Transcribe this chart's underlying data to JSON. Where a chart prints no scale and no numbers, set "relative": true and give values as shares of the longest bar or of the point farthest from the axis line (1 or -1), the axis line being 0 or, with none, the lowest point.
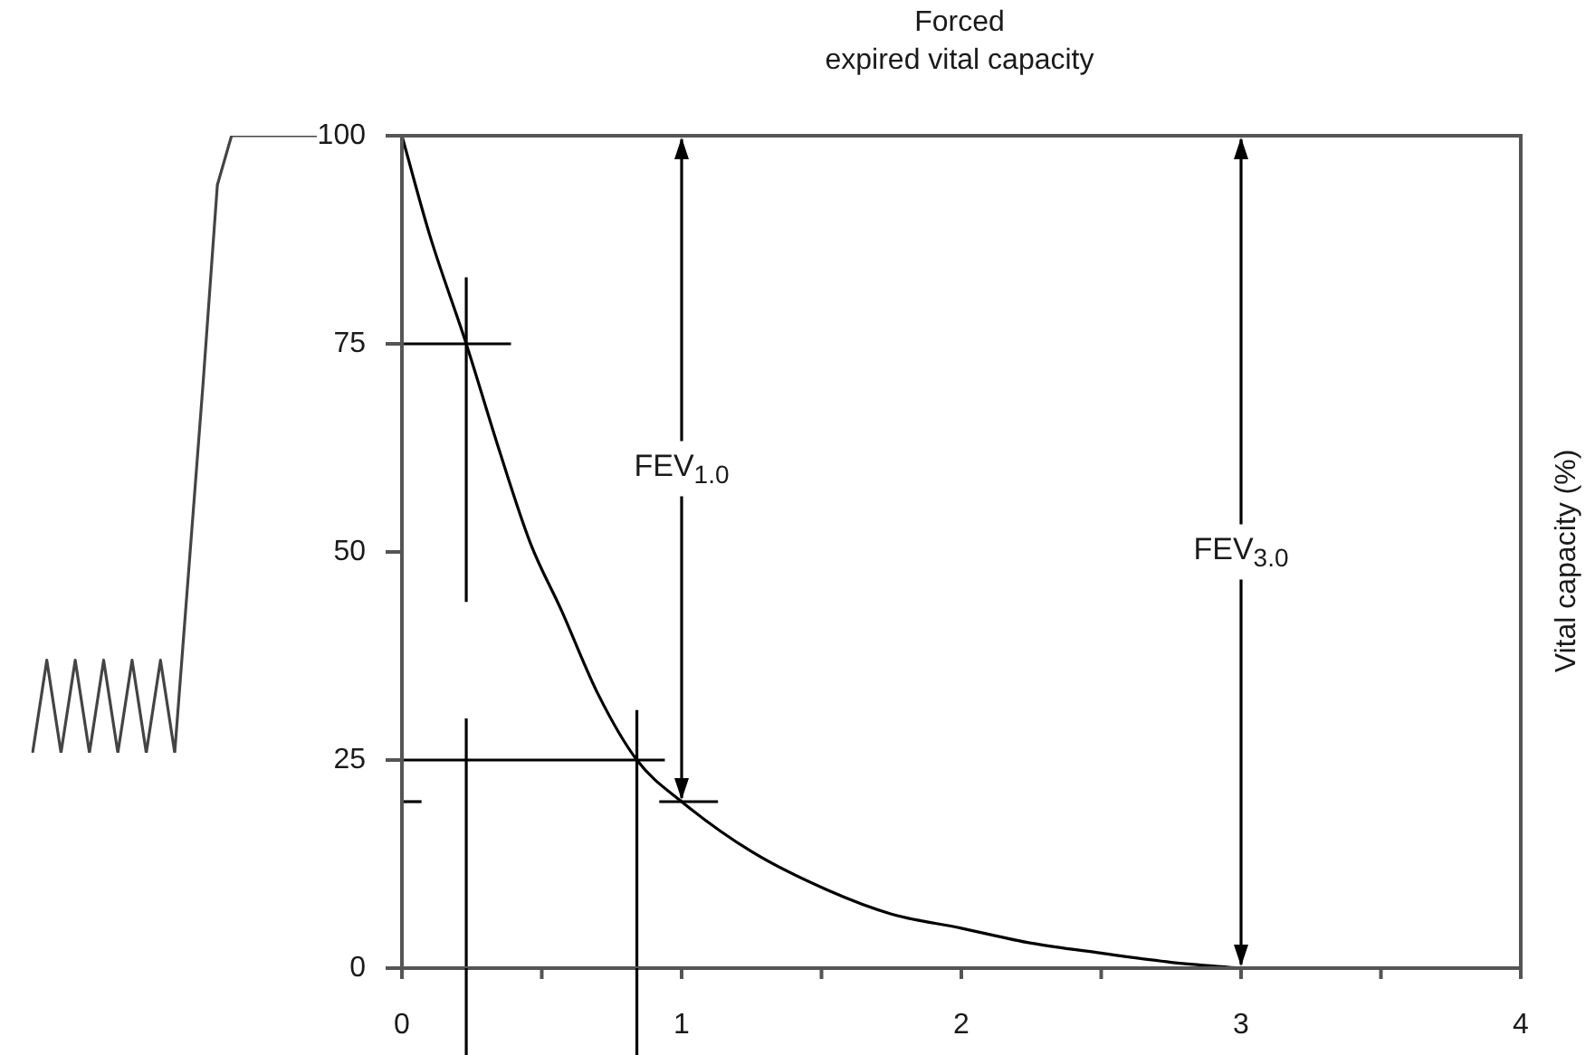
{
  "chart_data": [
    {
      "type": "line",
      "relative": true,
      "marker": "none",
      "line_style": "solid",
      "categories": [
        null,
        null,
        null,
        null,
        null,
        null,
        null,
        null,
        null,
        null,
        null,
        null,
        null,
        null,
        null,
        null,
        null,
        null,
        null,
        null,
        null
      ],
      "series": [
        {
          "color": "#444444",
          "values": [
            0,
            0.15,
            0,
            0.15,
            0,
            0.15,
            0,
            0.15,
            0,
            0.15,
            0,
            0.3,
            0.6,
            0.92,
            1,
            1,
            1,
            1,
            1,
            1,
            1
          ]
        }
      ]
    },
    {
      "type": "line",
      "title": "Forced\nexpired vital capacity",
      "ylabel": "Vital capacity (%)",
      "xlim": [
        0,
        4
      ],
      "xticks": [
        0,
        {
          "value": 0.5,
          "label": null
        },
        1,
        {
          "value": 1.5,
          "label": null
        },
        2,
        {
          "value": 2.5,
          "label": null
        },
        3,
        {
          "value": 3.5,
          "label": null
        },
        4
      ],
      "ylim": [
        0,
        100
      ],
      "yticks": [
        0,
        25,
        50,
        75,
        100
      ],
      "marker": "none",
      "line_style": "solid",
      "series": [
        {
          "color": "#000000",
          "x": [
            0,
            0.1,
            0.23,
            0.35,
            0.46,
            0.57,
            0.7,
            0.84,
            1,
            1.25,
            1.52,
            1.75,
            2,
            2.25,
            2.5,
            2.75,
            3
          ],
          "values": [
            100,
            88,
            75,
            62,
            51,
            43,
            33,
            25,
            20,
            14,
            9.4,
            6.5,
            4.8,
            3,
            1.8,
            0.7,
            0
          ]
        },
        {
          "color": "#000000",
          "x": [
            0,
            0.39
          ],
          "values": [
            75,
            75
          ]
        },
        {
          "color": "#000000",
          "x": [
            0.23,
            0.23
          ],
          "values": [
            83,
            44
          ]
        },
        {
          "color": "#000000",
          "x": [
            0.23,
            0.23
          ],
          "values": [
            30,
            0
          ]
        },
        {
          "color": "#000000",
          "x": [
            0,
            0.94
          ],
          "values": [
            25,
            25
          ]
        },
        {
          "color": "#000000",
          "x": [
            0.84,
            0.84
          ],
          "values": [
            31,
            0
          ]
        },
        {
          "color": "#000000",
          "x": [
            0,
            0.07
          ],
          "values": [
            20,
            20
          ]
        },
        {
          "color": "#000000",
          "x": [
            0.92,
            1.13
          ],
          "values": [
            20,
            20
          ]
        }
      ],
      "annotations": [
        {
          "text": "FEV$_{1.0}$",
          "x": 1,
          "y": 20
        },
        {
          "text": "FEV$_{3.0}$",
          "x": 3,
          "y": 0
        }
      ]
    }
  ]
}
